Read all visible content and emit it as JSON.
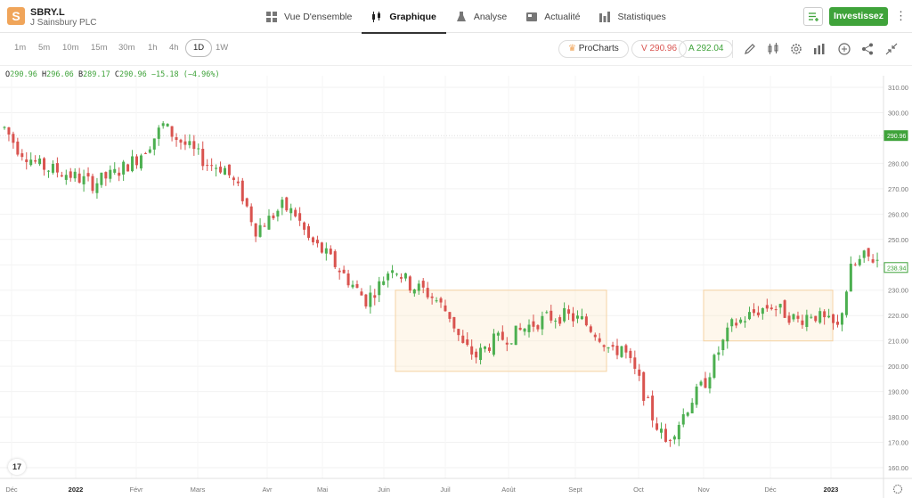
{
  "header": {
    "logo_letter": "S",
    "symbol": "SBRY.L",
    "company": "J Sainsbury PLC",
    "nav": [
      {
        "label": "Vue D'ensemble",
        "icon": "grid-icon"
      },
      {
        "label": "Graphique",
        "icon": "candles-icon",
        "active": true
      },
      {
        "label": "Analyse",
        "icon": "flask-icon"
      },
      {
        "label": "Actualité",
        "icon": "news-icon"
      },
      {
        "label": "Statistiques",
        "icon": "bar-chart-icon"
      }
    ],
    "invest_label": "Investissez",
    "more_label": "⋮"
  },
  "toolbar": {
    "timeframes": [
      "1m",
      "5m",
      "10m",
      "15m",
      "30m",
      "1h",
      "4h",
      "1D",
      "1W"
    ],
    "active_timeframe": "1D",
    "prochart_label": "ProCharts",
    "sell_label": "V 290.96",
    "buy_label": "A 292.04"
  },
  "ohlc": {
    "o_label": "O",
    "o": "290.96",
    "h_label": "H",
    "h": "296.06",
    "b_label": "B",
    "b": "289.17",
    "c_label": "C",
    "c": "290.96",
    "change": "−15.18 (−4.96%)"
  },
  "chart_data": {
    "type": "candlestick",
    "y_ticks": [
      "310.00",
      "300.00",
      "290.00",
      "280.00",
      "270.00",
      "260.00",
      "250.00",
      "240.00",
      "230.00",
      "220.00",
      "210.00",
      "200.00",
      "190.00",
      "180.00",
      "170.00",
      "160.00"
    ],
    "x_labels": [
      "Déc",
      "2022",
      "Févr",
      "Mars",
      "Avr",
      "Mai",
      "Juin",
      "Juil",
      "Août",
      "Sept",
      "Oct",
      "Nov",
      "Déc",
      "2023"
    ],
    "ylim": [
      155,
      315
    ],
    "price_tags": [
      {
        "value": 290.96,
        "label": "290.96",
        "color": "#3fa33a"
      },
      {
        "value": 238.94,
        "label": "238.94",
        "color": "#3fa33a"
      }
    ],
    "zones": [
      {
        "x_from": "Juin",
        "x_to": "Sept",
        "y_low": 198,
        "y_high": 230
      },
      {
        "x_from": "Nov",
        "x_to": "Déc",
        "y_low": 210,
        "y_high": 230
      }
    ],
    "up_color": "#4caf50",
    "down_color": "#d9534f",
    "series_path": [
      [
        0,
        294
      ],
      [
        3,
        286
      ],
      [
        8,
        279
      ],
      [
        14,
        276
      ],
      [
        20,
        272
      ],
      [
        25,
        276
      ],
      [
        30,
        282
      ],
      [
        33,
        288
      ],
      [
        36,
        295
      ],
      [
        39,
        290
      ],
      [
        42,
        286
      ],
      [
        46,
        280
      ],
      [
        50,
        278
      ],
      [
        54,
        267
      ],
      [
        57,
        254
      ],
      [
        60,
        258
      ],
      [
        63,
        263
      ],
      [
        66,
        260
      ],
      [
        69,
        250
      ],
      [
        73,
        244
      ],
      [
        76,
        238
      ],
      [
        79,
        232
      ],
      [
        82,
        226
      ],
      [
        85,
        232
      ],
      [
        88,
        240
      ],
      [
        92,
        232
      ],
      [
        95,
        230
      ],
      [
        98,
        226
      ],
      [
        101,
        220
      ],
      [
        104,
        208
      ],
      [
        107,
        204
      ],
      [
        111,
        210
      ],
      [
        115,
        212
      ],
      [
        119,
        216
      ],
      [
        123,
        219
      ],
      [
        127,
        220
      ],
      [
        131,
        218
      ],
      [
        135,
        212
      ],
      [
        138,
        205
      ],
      [
        140,
        208
      ],
      [
        144,
        194
      ],
      [
        147,
        180
      ],
      [
        150,
        170
      ],
      [
        153,
        178
      ],
      [
        156,
        187
      ],
      [
        159,
        194
      ],
      [
        162,
        206
      ],
      [
        165,
        216
      ],
      [
        168,
        219
      ],
      [
        171,
        222
      ],
      [
        174,
        224
      ],
      [
        177,
        221
      ],
      [
        180,
        218
      ],
      [
        183,
        221
      ],
      [
        186,
        218
      ],
      [
        189,
        215
      ],
      [
        192,
        238
      ],
      [
        195,
        243
      ],
      [
        198,
        242
      ]
    ]
  },
  "tv_logo": "17"
}
